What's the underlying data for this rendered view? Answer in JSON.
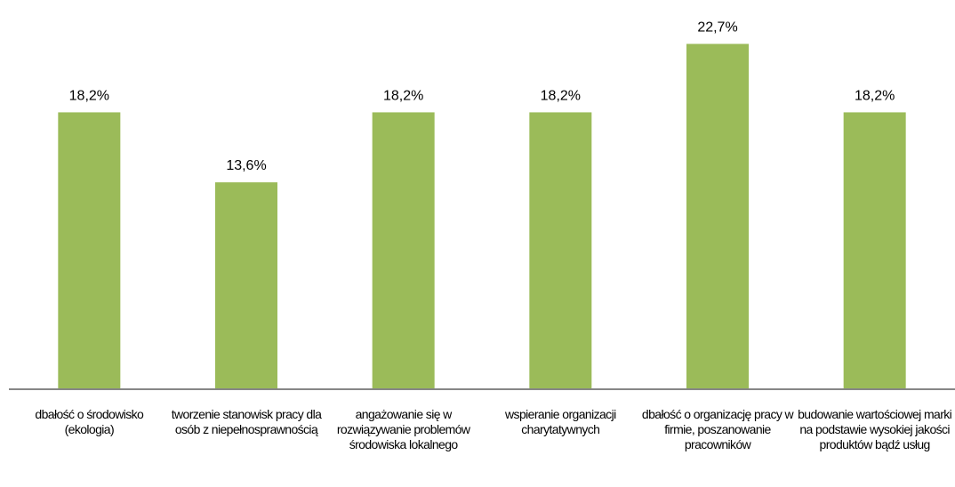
{
  "chart_data": {
    "type": "bar",
    "categories": [
      "dbałość o środowisko (ekologia)",
      "tworzenie stanowisk pracy dla osób z niepełnosprawnością",
      "angażowanie się w rozwiązywanie problemów środowiska lokalnego",
      "wspieranie organizacji charytatywnych",
      "dbałość o organizację pracy w firmie, poszanowanie pracowników",
      "budowanie wartościowej marki na podstawie wysokiej jakości produktów bądź usług"
    ],
    "values": [
      18.2,
      13.6,
      18.2,
      18.2,
      22.7,
      18.2
    ],
    "value_labels": [
      "18,2%",
      "13,6%",
      "18,2%",
      "18,2%",
      "22,7%",
      "18,2%"
    ],
    "color": "#9bbb59",
    "ylim": [
      0,
      25
    ]
  }
}
